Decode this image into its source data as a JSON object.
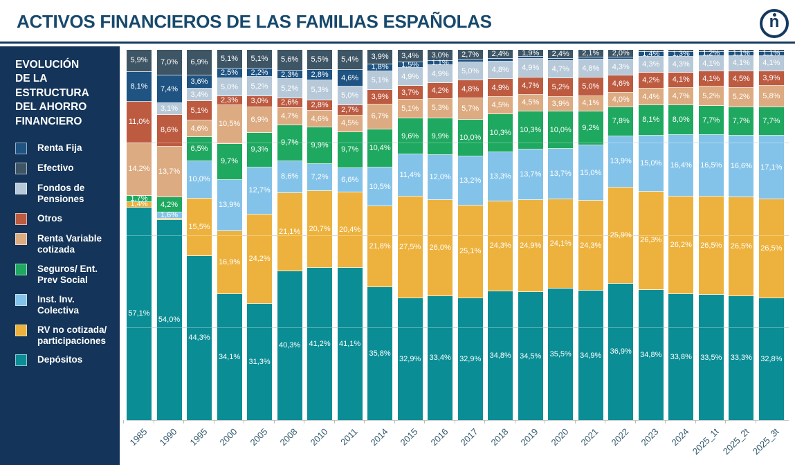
{
  "page": {
    "title": "ACTIVOS FINANCIEROS DE LAS FAMILIAS ESPAÑOLAS",
    "title_color": "#17496c",
    "accent_rule_color": "#16395f"
  },
  "logo": {
    "letter": "n"
  },
  "sidebar": {
    "background": "#143459",
    "title": "EVOLUCIÓN DE LA ESTRUCTURA DEL AHORRO FINANCIERO",
    "title_lines": [
      "EVOLUCIÓN",
      "DE LA",
      "ESTRUCTURA",
      "DEL AHORRO",
      "FINANCIERO"
    ],
    "legend": [
      {
        "label": "Renta Fija",
        "color": "#1e5382"
      },
      {
        "label": "Efectivo",
        "color": "#3e5565"
      },
      {
        "label": "Fondos de Pensiones",
        "color": "#b7c9d8"
      },
      {
        "label": "Otros",
        "color": "#bd5b41"
      },
      {
        "label": "Renta Variable cotizada",
        "color": "#ddab81"
      },
      {
        "label": "Seguros/ Ent. Prev Social",
        "color": "#1fa860"
      },
      {
        "label": "Inst. Inv. Colectiva",
        "color": "#84c3e9"
      },
      {
        "label": "RV no cotizada/ participaciones",
        "color": "#edb23d"
      },
      {
        "label": "Depósitos",
        "color": "#0b8d95"
      }
    ]
  },
  "chart_data": {
    "type": "bar",
    "stacked": true,
    "units": "percent of total financial assets",
    "ylim": [
      0,
      100
    ],
    "gridlines_pct": [
      25,
      50,
      75
    ],
    "label_format": "one decimal, comma separator, % suffix; labels hidden for segments under 1%",
    "categories": [
      "1985",
      "1990",
      "1995",
      "2000",
      "2005",
      "2008",
      "2010",
      "2011",
      "2014",
      "2015",
      "2016",
      "2017",
      "2018",
      "2019",
      "2020",
      "2021",
      "2022",
      "2023",
      "2024",
      "2025_1t",
      "2025_2t",
      "2025_3t"
    ],
    "series": [
      {
        "name": "Efectivo",
        "color": "#3e5565",
        "values": [
          5.9,
          7.0,
          6.9,
          5.1,
          5.1,
          5.6,
          5.5,
          5.4,
          3.9,
          3.4,
          3.0,
          2.7,
          2.4,
          1.9,
          2.4,
          2.1,
          2.0,
          0.5,
          0.5,
          0.5,
          0.5,
          0.5
        ]
      },
      {
        "name": "Renta Fija",
        "color": "#1e5382",
        "values": [
          8.1,
          7.4,
          3.6,
          2.5,
          2.2,
          2.3,
          2.8,
          4.6,
          1.8,
          1.5,
          1.1,
          0.6,
          0.7,
          0.6,
          0.5,
          0.6,
          0.6,
          1.4,
          1.3,
          1.2,
          1.1,
          1.1
        ]
      },
      {
        "name": "Fondos de Pensiones",
        "color": "#b7c9d8",
        "values": [
          0,
          3.1,
          3.4,
          5.0,
          5.2,
          5.2,
          5.3,
          5.0,
          5.1,
          4.9,
          4.9,
          5.0,
          4.8,
          4.9,
          4.7,
          4.8,
          4.3,
          4.3,
          4.3,
          4.1,
          4.1,
          4.1
        ]
      },
      {
        "name": "Otros",
        "color": "#bd5b41",
        "values": [
          11.0,
          8.6,
          5.1,
          2.3,
          3.0,
          2.6,
          2.8,
          2.7,
          3.9,
          3.7,
          4.2,
          4.8,
          4.9,
          4.7,
          5.2,
          5.0,
          4.6,
          4.2,
          4.1,
          4.1,
          4.5,
          3.9
        ]
      },
      {
        "name": "Renta Variable cotizada",
        "color": "#ddab81",
        "values": [
          14.2,
          13.7,
          4.6,
          10.5,
          6.9,
          4.7,
          4.6,
          4.5,
          6.7,
          5.1,
          5.3,
          5.7,
          4.5,
          4.5,
          3.9,
          4.1,
          4.0,
          4.4,
          4.7,
          5.2,
          5.2,
          5.8
        ]
      },
      {
        "name": "Seguros/ Ent. Prev Social",
        "color": "#1fa860",
        "values": [
          1.7,
          4.2,
          6.5,
          9.7,
          9.3,
          9.7,
          9.9,
          9.7,
          10.4,
          9.6,
          9.9,
          10.0,
          10.3,
          10.3,
          10.0,
          9.2,
          7.8,
          8.1,
          8.0,
          7.7,
          7.7,
          7.7
        ]
      },
      {
        "name": "Inst. Inv. Colectiva",
        "color": "#84c3e9",
        "values": [
          0,
          1.6,
          10.0,
          13.9,
          12.7,
          8.6,
          7.2,
          6.6,
          10.5,
          11.4,
          12.0,
          13.2,
          13.3,
          13.7,
          13.7,
          15.0,
          13.9,
          15.0,
          16.4,
          16.5,
          16.6,
          17.1
        ]
      },
      {
        "name": "RV no cotizada/ participaciones",
        "color": "#edb23d",
        "values": [
          1.4,
          0.4,
          15.5,
          16.9,
          24.2,
          21.1,
          20.7,
          20.4,
          21.8,
          27.5,
          26.0,
          25.1,
          24.3,
          24.9,
          24.1,
          24.3,
          25.9,
          26.3,
          26.2,
          26.5,
          26.5,
          26.5
        ]
      },
      {
        "name": "Depósitos",
        "color": "#0b8d95",
        "values": [
          57.1,
          54.0,
          44.3,
          34.1,
          31.3,
          40.3,
          41.2,
          41.1,
          35.8,
          32.9,
          33.4,
          32.9,
          34.8,
          34.5,
          35.5,
          34.9,
          36.9,
          34.8,
          33.8,
          33.5,
          33.3,
          32.8
        ]
      }
    ]
  }
}
